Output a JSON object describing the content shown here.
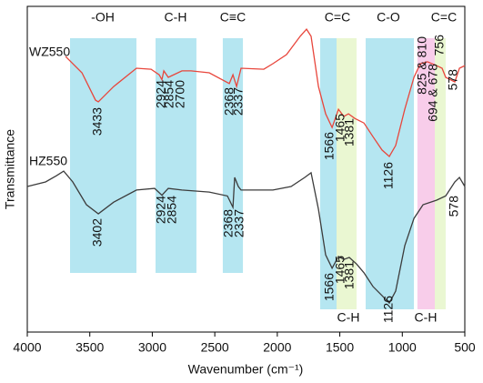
{
  "chart_data": {
    "type": "line",
    "xlabel": "Wavenumber (cm⁻¹)",
    "ylabel": "Transmittance",
    "xlim": [
      4000,
      500
    ],
    "ylim": [
      0,
      100
    ],
    "xticks": [
      4000,
      3500,
      3000,
      2500,
      2000,
      1500,
      1000,
      500
    ],
    "bands": [
      {
        "from": 3658,
        "to": 3127,
        "color": "#b5e6f1"
      },
      {
        "from": 2974,
        "to": 2647,
        "color": "#b5e6f1"
      },
      {
        "from": 2436,
        "to": 2275,
        "color": "#b5e6f1"
      },
      {
        "from": 1657,
        "to": 1526,
        "color": "#b5e6f1"
      },
      {
        "from": 1526,
        "to": 1366,
        "color": "#eaf7d2"
      },
      {
        "from": 1293,
        "to": 907,
        "color": "#b5e6f1"
      },
      {
        "from": 879,
        "to": 740,
        "color": "#f8cdea"
      },
      {
        "from": 740,
        "to": 653,
        "color": "#eaf7d2"
      }
    ],
    "top_labels": [
      "-OH",
      "C-H",
      "C≡C",
      "C=C",
      "C-O",
      "C=C"
    ],
    "bottom_labels": [
      "C-H",
      "C-H"
    ],
    "series": [
      {
        "name": "WZ550",
        "color": "#e8463c",
        "x": [
          3694,
          3563,
          3454,
          3432,
          3309,
          3127,
          3010,
          2945,
          2923,
          2908,
          2872,
          2763,
          2690,
          2545,
          2384,
          2355,
          2326,
          2290,
          2108,
          2035,
          1926,
          1817,
          1766,
          1730,
          1671,
          1613,
          1562,
          1511,
          1468,
          1431,
          1380,
          1307,
          1235,
          1162,
          1104,
          1053,
          980,
          907,
          856,
          798,
          725,
          682,
          653,
          580,
          543,
          500
        ],
        "values": [
          84.6,
          79.6,
          71.2,
          70.7,
          75.4,
          81,
          80.7,
          79,
          77.5,
          80.2,
          78.2,
          80.2,
          80.2,
          79.6,
          76.3,
          79,
          75.4,
          81,
          80.7,
          82.4,
          85.2,
          90.8,
          93,
          90.8,
          75.4,
          67,
          62.8,
          68.4,
          66.2,
          67,
          65.6,
          64.2,
          60,
          55.9,
          53.9,
          57.3,
          68.4,
          78.2,
          82.4,
          83,
          81.8,
          81,
          78.2,
          76.8,
          81,
          81.8
        ]
      },
      {
        "name": "HZ550",
        "color": "#3c3c3c",
        "x": [
          4000,
          3854,
          3767,
          3709,
          3636,
          3527,
          3432,
          3309,
          3127,
          2981,
          2923,
          2872,
          2763,
          2545,
          2399,
          2355,
          2341,
          2312,
          2290,
          2181,
          2035,
          1890,
          1780,
          1730,
          1671,
          1613,
          1562,
          1511,
          1468,
          1424,
          1366,
          1307,
          1235,
          1162,
          1104,
          1053,
          980,
          907,
          834,
          725,
          653,
          580,
          543,
          500
        ],
        "values": [
          44.7,
          46.1,
          48,
          49.4,
          46.1,
          39.1,
          36.3,
          39.9,
          43.6,
          44.1,
          42,
          44.1,
          43.6,
          43,
          41.8,
          38.3,
          47.5,
          44.7,
          43.6,
          43.6,
          43.6,
          44.7,
          47.5,
          48.9,
          37.7,
          23.7,
          19.6,
          23.2,
          22.3,
          22.9,
          20.9,
          18.2,
          14,
          11.2,
          8.9,
          12.6,
          26.5,
          34.9,
          39.1,
          40.5,
          41.8,
          46.1,
          47.5,
          44.7
        ]
      }
    ],
    "annotations": [
      [
        "3433",
        "2924",
        "2854",
        "2700",
        "2368",
        "2337",
        "1566",
        "1465",
        "1381",
        "1126",
        "825 & 810",
        "694 & 678",
        "756",
        "578"
      ],
      [
        "3402",
        "2924",
        "2854",
        "2368",
        "2337",
        "1566",
        "1465",
        "1381",
        "1126",
        "578"
      ]
    ]
  }
}
